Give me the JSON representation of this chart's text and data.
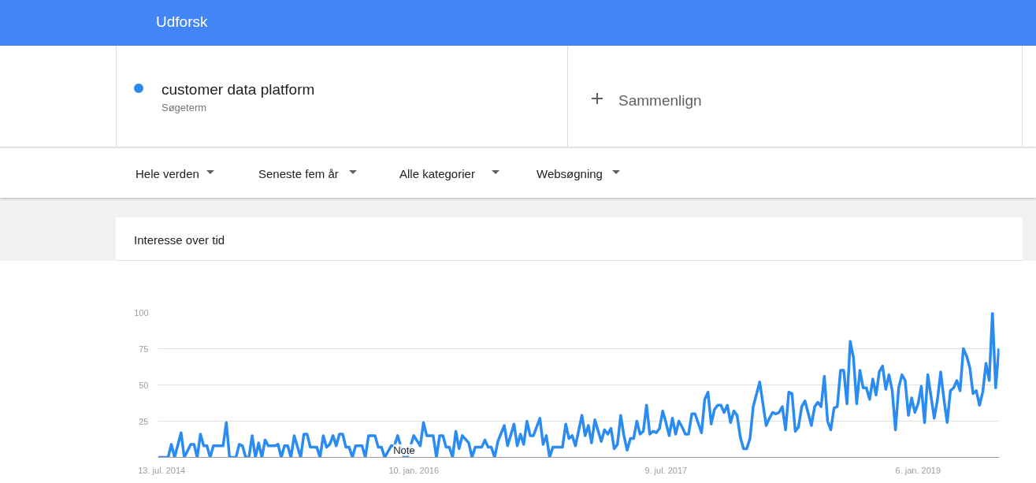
{
  "chart_data": {
    "type": "line",
    "title": "Interesse over tid",
    "subtitle": "Søgeterm",
    "legend": "top",
    "grid": "y",
    "xlim": [
      "2014-07-05",
      "2019-07-01"
    ],
    "xticks": [
      {
        "value": "2014-07-13",
        "label": "13. jul. 2014"
      },
      {
        "value": "2016-01-10",
        "label": "10. jan. 2016"
      },
      {
        "value": "2017-07-09",
        "label": "9. jul. 2017"
      },
      {
        "value": "2019-01-06",
        "label": "6. jan. 2019"
      }
    ],
    "ylim": [
      0,
      100
    ],
    "yticks": [
      {
        "value": 0,
        "label": null
      },
      25,
      50,
      75,
      100
    ],
    "annotations": [
      "Udforsk",
      "Sammenlign",
      "Hele verden",
      "Seneste fem år",
      "Alle kategorier",
      "Websøgning",
      {
        "text": "Note",
        "x": "2015-12-20",
        "y": 5
      }
    ],
    "series": [
      {
        "name": "customer data platform",
        "color": "#2a8cf0",
        "x": [
          "2014-07-06",
          "2014-07-27",
          "2014-08-03",
          "2014-08-10",
          "2014-08-24",
          "2014-08-31",
          "2014-09-14",
          "2014-09-21",
          "2014-09-28",
          "2014-10-05",
          "2014-10-12",
          "2014-10-19",
          "2014-10-26",
          "2014-11-02",
          "2014-11-23",
          "2014-11-30",
          "2014-12-07",
          "2014-12-21",
          "2014-12-28",
          "2015-01-04",
          "2015-01-11",
          "2015-01-18",
          "2015-01-25",
          "2015-02-01",
          "2015-02-08",
          "2015-02-15",
          "2015-02-22",
          "2015-03-01",
          "2015-03-15",
          "2015-03-22",
          "2015-03-29",
          "2015-04-05",
          "2015-04-12",
          "2015-04-19",
          "2015-04-26",
          "2015-05-10",
          "2015-05-17",
          "2015-05-24",
          "2015-05-31",
          "2015-06-14",
          "2015-06-21",
          "2015-06-28",
          "2015-07-05",
          "2015-07-12",
          "2015-07-19",
          "2015-07-26",
          "2015-08-02",
          "2015-08-09",
          "2015-08-16",
          "2015-08-23",
          "2015-08-30",
          "2015-09-06",
          "2015-09-20",
          "2015-09-27",
          "2015-10-04",
          "2015-10-18",
          "2015-10-25",
          "2015-11-01",
          "2015-11-08",
          "2015-11-22",
          "2015-11-29",
          "2015-12-06",
          "2015-12-20",
          "2015-12-27",
          "2016-01-03",
          "2016-01-10",
          "2016-01-24",
          "2016-01-31",
          "2016-02-07",
          "2016-02-21",
          "2016-02-28",
          "2016-03-06",
          "2016-03-13",
          "2016-03-20",
          "2016-03-27",
          "2016-04-03",
          "2016-04-10",
          "2016-04-17",
          "2016-04-24",
          "2016-05-08",
          "2016-05-15",
          "2016-05-22",
          "2016-06-05",
          "2016-06-12",
          "2016-06-19",
          "2016-06-26",
          "2016-07-03",
          "2016-07-10",
          "2016-07-24",
          "2016-07-31",
          "2016-08-14",
          "2016-08-21",
          "2016-08-28",
          "2016-09-04",
          "2016-09-11",
          "2016-09-18",
          "2016-09-25",
          "2016-10-09",
          "2016-10-16",
          "2016-10-23",
          "2016-10-30",
          "2016-11-06",
          "2016-11-27",
          "2016-12-04",
          "2016-12-11",
          "2016-12-18",
          "2016-12-25",
          "2017-01-08",
          "2017-01-15",
          "2017-01-22",
          "2017-01-29",
          "2017-02-05",
          "2017-02-19",
          "2017-02-26",
          "2017-03-05",
          "2017-03-12",
          "2017-03-19",
          "2017-03-26",
          "2017-04-02",
          "2017-04-09",
          "2017-04-16",
          "2017-04-23",
          "2017-04-30",
          "2017-05-07",
          "2017-05-14",
          "2017-05-21",
          "2017-05-28",
          "2017-06-04",
          "2017-06-11",
          "2017-06-18",
          "2017-06-25",
          "2017-07-02",
          "2017-07-09",
          "2017-07-16",
          "2017-07-23",
          "2017-07-30",
          "2017-08-06",
          "2017-08-13",
          "2017-08-20",
          "2017-08-27",
          "2017-09-03",
          "2017-09-10",
          "2017-09-24",
          "2017-10-01",
          "2017-10-08",
          "2017-10-15",
          "2017-10-22",
          "2017-10-29",
          "2017-11-05",
          "2017-11-12",
          "2017-11-19",
          "2017-11-26",
          "2017-12-03",
          "2017-12-10",
          "2017-12-17",
          "2017-12-24",
          "2017-12-31",
          "2018-01-07",
          "2018-01-14",
          "2018-01-28",
          "2018-02-11",
          "2018-02-18",
          "2018-02-25",
          "2018-03-04",
          "2018-03-11",
          "2018-03-18",
          "2018-03-25",
          "2018-04-01",
          "2018-04-08",
          "2018-04-15",
          "2018-04-22",
          "2018-04-29",
          "2018-05-06",
          "2018-05-20",
          "2018-05-27",
          "2018-06-03",
          "2018-06-10",
          "2018-06-17",
          "2018-06-24",
          "2018-07-01",
          "2018-07-08",
          "2018-07-15",
          "2018-07-22",
          "2018-07-29",
          "2018-08-05",
          "2018-08-12",
          "2018-08-19",
          "2018-08-26",
          "2018-09-02",
          "2018-09-09",
          "2018-09-16",
          "2018-09-23",
          "2018-09-30",
          "2018-10-07",
          "2018-10-14",
          "2018-10-21",
          "2018-10-28",
          "2018-11-04",
          "2018-11-11",
          "2018-11-18",
          "2018-11-25",
          "2018-12-02",
          "2018-12-09",
          "2018-12-16",
          "2018-12-23",
          "2018-12-30",
          "2019-01-06",
          "2019-01-13",
          "2019-01-20",
          "2019-01-27",
          "2019-02-03",
          "2019-02-10",
          "2019-02-17",
          "2019-02-24",
          "2019-03-03",
          "2019-03-10",
          "2019-03-17",
          "2019-03-24",
          "2019-03-31",
          "2019-04-07",
          "2019-04-14",
          "2019-04-21",
          "2019-04-28",
          "2019-05-05",
          "2019-05-12",
          "2019-05-19",
          "2019-05-26",
          "2019-06-02",
          "2019-06-09",
          "2019-06-16",
          "2019-06-23",
          "2019-06-30"
        ],
        "values": [
          0,
          0,
          9,
          0,
          17,
          0,
          9,
          9,
          0,
          16,
          8,
          8,
          0,
          8,
          8,
          24,
          0,
          0,
          9,
          8,
          0,
          0,
          15,
          0,
          10,
          0,
          12,
          8,
          8,
          9,
          0,
          8,
          8,
          0,
          15,
          0,
          16,
          16,
          7,
          7,
          0,
          15,
          7,
          9,
          15,
          8,
          16,
          16,
          7,
          7,
          0,
          8,
          8,
          0,
          15,
          15,
          7,
          7,
          0,
          8,
          8,
          15,
          0,
          0,
          8,
          15,
          8,
          24,
          15,
          15,
          0,
          15,
          15,
          7,
          7,
          0,
          18,
          6,
          15,
          10,
          0,
          7,
          7,
          12,
          7,
          7,
          0,
          11,
          22,
          8,
          23,
          8,
          16,
          9,
          25,
          15,
          15,
          27,
          9,
          15,
          0,
          7,
          7,
          23,
          13,
          15,
          8,
          29,
          15,
          22,
          10,
          26,
          11,
          19,
          16,
          20,
          6,
          9,
          29,
          15,
          5,
          13,
          13,
          25,
          16,
          18,
          36,
          16,
          18,
          17,
          20,
          32,
          24,
          15,
          27,
          16,
          25,
          21,
          16,
          16,
          30,
          30,
          17,
          40,
          45,
          23,
          33,
          36,
          36,
          31,
          36,
          24,
          32,
          29,
          14,
          6,
          6,
          13,
          35,
          52,
          22,
          27,
          31,
          30,
          31,
          35,
          19,
          45,
          44,
          18,
          21,
          35,
          39,
          22,
          35,
          38,
          35,
          56,
          25,
          19,
          34,
          35,
          60,
          60,
          37,
          80,
          69,
          37,
          60,
          48,
          48,
          40,
          54,
          43,
          59,
          63,
          47,
          57,
          46,
          19,
          48,
          57,
          53,
          29,
          41,
          31,
          37,
          49,
          24,
          57,
          42,
          27,
          40,
          59,
          40,
          24,
          46,
          48,
          53,
          46,
          75,
          70,
          62,
          44,
          46,
          36,
          45,
          65,
          53,
          100,
          48,
          75
        ]
      }
    ]
  }
}
